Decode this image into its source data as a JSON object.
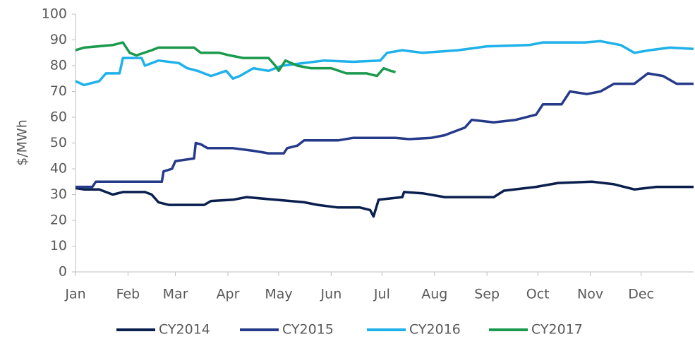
{
  "chart_data": {
    "type": "line",
    "y_label": "$/MWh",
    "xlim": [
      0,
      365
    ],
    "xticks": [
      {
        "value": 0,
        "label": "Jan"
      },
      {
        "value": 31,
        "label": "Feb"
      },
      {
        "value": 59,
        "label": "Mar"
      },
      {
        "value": 90,
        "label": "Apr"
      },
      {
        "value": 120,
        "label": "May"
      },
      {
        "value": 151,
        "label": "Jun"
      },
      {
        "value": 181,
        "label": "Jul"
      },
      {
        "value": 212,
        "label": "Aug"
      },
      {
        "value": 243,
        "label": "Sep"
      },
      {
        "value": 273,
        "label": "Oct"
      },
      {
        "value": 304,
        "label": "Nov"
      },
      {
        "value": 334,
        "label": "Dec"
      }
    ],
    "ylim": [
      0,
      100
    ],
    "yticks": [
      0,
      10,
      20,
      30,
      40,
      50,
      60,
      70,
      80,
      90,
      100
    ],
    "grid": false,
    "legend": "bottom",
    "series": [
      {
        "name": "CY2014",
        "color": "#0b1f4f",
        "x": [
          0,
          5,
          14,
          18,
          22,
          28,
          41,
          45,
          49,
          55,
          76,
          80,
          93,
          101,
          118,
          135,
          143,
          155,
          168,
          174,
          176,
          179,
          193,
          194,
          205,
          218,
          247,
          253,
          272,
          285,
          305,
          318,
          330,
          343,
          365
        ],
        "values": [
          32.5,
          32,
          32,
          31,
          30,
          31,
          31,
          30,
          27,
          26,
          26,
          27.5,
          28,
          29,
          28,
          27,
          26,
          25,
          25,
          24,
          21.5,
          28,
          29,
          31,
          30.5,
          29,
          29,
          31.5,
          33,
          34.5,
          35,
          34,
          32,
          33,
          33
        ]
      },
      {
        "name": "CY2015",
        "color": "#263a8a",
        "x": [
          0,
          10,
          12,
          51,
          52,
          57,
          59,
          70,
          71,
          74,
          78,
          93,
          105,
          114,
          123,
          125,
          131,
          135,
          155,
          164,
          189,
          197,
          210,
          218,
          230,
          234,
          247,
          260,
          272,
          276,
          287,
          292,
          302,
          310,
          318,
          330,
          338,
          347,
          355,
          365
        ],
        "values": [
          33,
          33,
          35,
          35,
          39,
          40,
          43,
          44,
          50,
          49.5,
          48,
          48,
          47,
          46,
          46,
          48,
          49,
          51,
          51,
          52,
          52,
          51.5,
          52,
          53,
          56,
          59,
          58,
          59,
          61,
          65,
          65,
          70,
          69,
          70,
          73,
          73,
          77,
          76,
          73,
          73
        ]
      },
      {
        "name": "CY2016",
        "color": "#1fb1ea",
        "x": [
          0,
          5,
          14,
          18,
          26,
          28,
          39,
          41,
          49,
          61,
          66,
          72,
          80,
          89,
          93,
          97,
          105,
          114,
          122,
          135,
          147,
          164,
          180,
          184,
          193,
          205,
          226,
          243,
          268,
          276,
          301,
          310,
          322,
          330,
          339,
          351,
          365
        ],
        "values": [
          74,
          72.5,
          74,
          77,
          77,
          83,
          83,
          80,
          82,
          81,
          79,
          78,
          76,
          78,
          75,
          76,
          79,
          78,
          80,
          81,
          82,
          81.5,
          82,
          85,
          86,
          85,
          86,
          87.5,
          88,
          89,
          89,
          89.5,
          88,
          85,
          86,
          87,
          86.5
        ]
      },
      {
        "name": "CY2017",
        "color": "#1a9a4e",
        "x": [
          0,
          5,
          22,
          28,
          32,
          36,
          45,
          49,
          70,
          74,
          85,
          91,
          99,
          114,
          118,
          120,
          124,
          131,
          139,
          151,
          160,
          172,
          178,
          182,
          186,
          189
        ],
        "values": [
          86,
          87,
          88,
          89,
          85,
          84,
          86,
          87,
          87,
          85,
          85,
          84,
          83,
          83,
          80,
          78,
          82,
          80,
          79,
          79,
          77,
          77,
          76,
          79,
          78,
          77.5
        ]
      }
    ]
  }
}
